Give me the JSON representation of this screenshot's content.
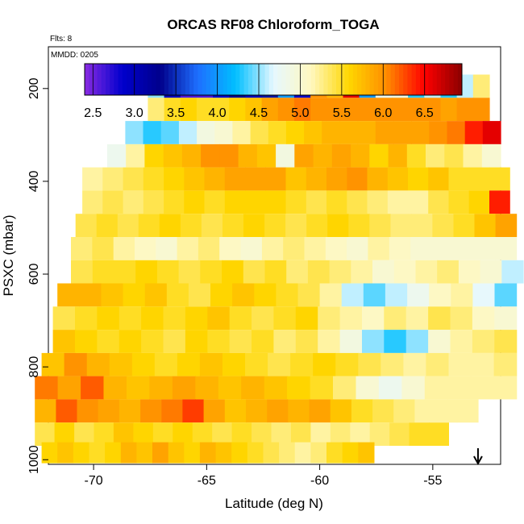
{
  "chart_data": {
    "type": "heatmap",
    "title": "ORCAS RF08 Chloroform_TOGA",
    "flights_label": "Flts: 8",
    "date_label": "MMDD: 0205",
    "xlabel": "Latitude (deg N)",
    "ylabel": "PSXC (mbar)",
    "xlim": [
      -72,
      -52
    ],
    "ylim": [
      1010,
      110
    ],
    "x_ticks": [
      -70,
      -65,
      -60,
      -55
    ],
    "y_ticks": [
      200,
      400,
      600,
      800,
      1000
    ],
    "colorbar": {
      "range": [
        2.4,
        6.95
      ],
      "tick_values": [
        2.5,
        3.0,
        3.5,
        4.0,
        4.5,
        5.0,
        5.5,
        6.0,
        6.5
      ],
      "tick_labels": [
        "2.5",
        "3.0",
        "3.5",
        "4.0",
        "4.5",
        "5.0",
        "5.5",
        "6.0",
        "6.5"
      ],
      "colors": [
        "#8a2be2",
        "#0000cd",
        "#00008b",
        "#1e6fff",
        "#00bfff",
        "#e6f8ff",
        "#fff8c0",
        "#ffd700",
        "#ff8c00",
        "#ff0000",
        "#8b0000"
      ]
    },
    "rows": [
      {
        "p": 195,
        "lat": [
          -67.6,
          -52.5
        ],
        "values": [
          4.5,
          3.0,
          2.6,
          2.6,
          2.9,
          3.3,
          3.0,
          3.4,
          4.0,
          2.9,
          6.0,
          5.8,
          6.6,
          4.0,
          4.8,
          4.9,
          4.3,
          4.6,
          4.3,
          4.6,
          5.3
        ]
      },
      {
        "p": 245,
        "lat": [
          -67.6,
          -52.5
        ],
        "values": [
          5.3,
          5.5,
          5.6,
          5.5,
          5.5,
          5.6,
          5.7,
          5.9,
          6.0,
          6.1,
          6.0,
          6.0,
          6.0,
          6.0,
          6.0,
          6.0,
          6.0,
          6.0,
          5.9,
          6.0,
          6.0
        ]
      },
      {
        "p": 295,
        "lat": [
          -68.6,
          -52.0
        ],
        "values": [
          4.5,
          4.3,
          4.4,
          4.6,
          4.9,
          5.0,
          5.2,
          5.4,
          5.5,
          5.6,
          5.7,
          5.8,
          5.8,
          5.8,
          5.9,
          5.9,
          5.9,
          6.0,
          6.1,
          6.4,
          6.6
        ]
      },
      {
        "p": 345,
        "lat": [
          -69.4,
          -52.0
        ],
        "values": [
          4.8,
          5.2,
          5.6,
          5.7,
          5.8,
          6.0,
          6.0,
          5.8,
          5.7,
          4.9,
          5.9,
          5.8,
          5.9,
          5.8,
          5.6,
          5.8,
          5.5,
          5.3,
          5.4,
          5.2,
          5.0
        ]
      },
      {
        "p": 395,
        "lat": [
          -70.5,
          -51.6
        ],
        "values": [
          5.2,
          5.3,
          5.4,
          5.5,
          5.6,
          5.7,
          5.8,
          5.9,
          5.9,
          5.9,
          5.7,
          5.8,
          5.9,
          6.0,
          5.8,
          5.7,
          5.6,
          5.7,
          5.5,
          5.5,
          5.5
        ]
      },
      {
        "p": 445,
        "lat": [
          -70.5,
          -51.6
        ],
        "values": [
          5.3,
          5.4,
          5.3,
          5.4,
          5.5,
          5.6,
          5.5,
          5.6,
          5.6,
          5.6,
          5.5,
          5.4,
          5.5,
          5.4,
          5.3,
          5.2,
          5.2,
          5.4,
          5.5,
          5.6,
          6.4
        ]
      },
      {
        "p": 495,
        "lat": [
          -70.8,
          -51.3
        ],
        "values": [
          5.4,
          5.5,
          5.4,
          5.5,
          5.6,
          5.5,
          5.4,
          5.5,
          5.6,
          5.5,
          5.4,
          5.5,
          5.6,
          5.5,
          5.4,
          5.3,
          5.3,
          5.4,
          5.5,
          5.7,
          5.9
        ]
      },
      {
        "p": 545,
        "lat": [
          -71.0,
          -51.3
        ],
        "values": [
          5.3,
          5.4,
          5.2,
          5.1,
          5.0,
          5.2,
          5.3,
          5.1,
          5.0,
          5.2,
          5.3,
          5.2,
          5.1,
          5.0,
          5.2,
          5.1,
          5.0,
          5.0,
          5.0,
          5.0,
          5.0
        ]
      },
      {
        "p": 595,
        "lat": [
          -71.0,
          -51.0
        ],
        "values": [
          5.4,
          5.5,
          5.5,
          5.6,
          5.5,
          5.4,
          5.5,
          5.6,
          5.4,
          5.5,
          5.3,
          5.4,
          5.3,
          5.2,
          5.0,
          5.1,
          5.2,
          5.3,
          5.1,
          5.0,
          4.6
        ]
      },
      {
        "p": 645,
        "lat": [
          -71.6,
          -51.3
        ],
        "values": [
          5.8,
          5.8,
          5.7,
          5.6,
          5.7,
          5.5,
          5.4,
          5.6,
          5.7,
          5.6,
          5.5,
          5.4,
          5.2,
          4.6,
          4.4,
          4.6,
          4.8,
          5.1,
          5.2,
          4.7,
          4.4
        ]
      },
      {
        "p": 695,
        "lat": [
          -71.8,
          -51.3
        ],
        "values": [
          5.4,
          5.5,
          5.6,
          5.5,
          5.6,
          5.5,
          5.6,
          5.7,
          5.5,
          5.4,
          5.5,
          5.6,
          5.3,
          5.2,
          5.1,
          5.3,
          5.2,
          5.4,
          5.3,
          5.1,
          5.0
        ]
      },
      {
        "p": 745,
        "lat": [
          -71.8,
          -51.3
        ],
        "values": [
          5.7,
          5.6,
          5.5,
          5.6,
          5.5,
          5.4,
          5.6,
          5.5,
          5.4,
          5.5,
          5.3,
          5.4,
          5.2,
          4.9,
          4.5,
          4.3,
          4.5,
          5.0,
          5.2,
          5.3,
          5.4
        ]
      },
      {
        "p": 795,
        "lat": [
          -72.3,
          -51.3
        ],
        "values": [
          5.7,
          6.0,
          5.8,
          5.7,
          5.6,
          5.5,
          5.6,
          5.7,
          5.6,
          5.5,
          5.4,
          5.5,
          5.6,
          5.5,
          5.4,
          5.3,
          5.2,
          5.3,
          5.2,
          5.2,
          5.3
        ]
      },
      {
        "p": 845,
        "lat": [
          -72.6,
          -51.3
        ],
        "values": [
          6.1,
          5.9,
          6.2,
          5.8,
          5.7,
          5.8,
          5.9,
          5.8,
          5.7,
          5.8,
          5.7,
          5.6,
          5.5,
          5.3,
          5.0,
          4.8,
          5.0,
          5.2,
          5.2,
          5.2,
          5.2
        ]
      },
      {
        "p": 895,
        "lat": [
          -72.6,
          -53.0
        ],
        "values": [
          5.8,
          6.2,
          6.0,
          5.9,
          5.8,
          6.0,
          6.1,
          6.3,
          5.9,
          5.7,
          5.8,
          5.9,
          5.8,
          5.9,
          5.7,
          5.5,
          5.4,
          5.3,
          5.2,
          5.2,
          5.2
        ]
      },
      {
        "p": 945,
        "lat": [
          -72.6,
          -54.3
        ],
        "values": [
          5.4,
          5.6,
          5.4,
          5.5,
          5.7,
          5.6,
          5.5,
          5.6,
          5.5,
          5.4,
          5.5,
          5.4,
          5.3,
          5.4,
          5.2,
          5.3,
          5.2,
          5.3,
          5.4,
          5.5,
          5.5
        ]
      },
      {
        "p": 985,
        "lat": [
          -72.3,
          -57.6
        ],
        "values": [
          5.6,
          5.7,
          5.6,
          5.5,
          5.6,
          5.8,
          5.7,
          5.9,
          5.7,
          5.6,
          5.8,
          5.7,
          5.6,
          5.5,
          5.4,
          5.3,
          5.2,
          5.3,
          5.5,
          5.6,
          5.7
        ]
      }
    ],
    "annotation": {
      "type": "arrow-down",
      "lat": -53.0
    }
  }
}
